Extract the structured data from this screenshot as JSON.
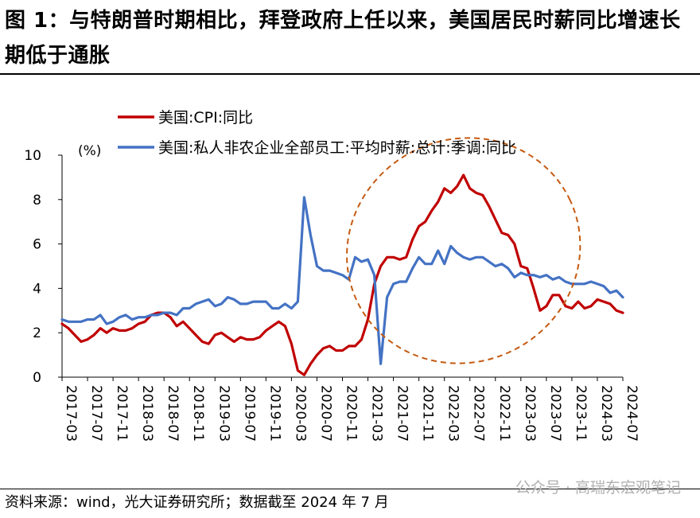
{
  "figure": {
    "title": "图 1：与特朗普时期相比，拜登政府上任以来，美国居民时薪同比增速长期低于通胀",
    "source": "资料来源：wind，光大证券研究所；数据截至 2024 年 7 月",
    "watermark": "公众号 · 高瑞东宏观笔记"
  },
  "colors": {
    "cpi": "#c00000",
    "wage": "#4472c4",
    "ellipse": "#c55a11"
  },
  "chart_data": {
    "type": "line",
    "ylabel": "(%)",
    "ylim": [
      0,
      10
    ],
    "yticks": [
      "0",
      "2",
      "4",
      "6",
      "8",
      "10"
    ],
    "xlim": [
      "2017-03",
      "2024-07"
    ],
    "xticks": [
      "2017-03",
      "2017-07",
      "2017-11",
      "2018-03",
      "2018-07",
      "2018-11",
      "2019-03",
      "2019-07",
      "2019-11",
      "2020-03",
      "2020-07",
      "2020-11",
      "2021-03",
      "2021-07",
      "2021-11",
      "2022-03",
      "2022-07",
      "2022-11",
      "2023-03",
      "2023-07",
      "2023-11",
      "2024-03",
      "2024-07"
    ],
    "legend_position": "top-left",
    "annotation": "dashed ellipse around 2021-03 to 2023-07 period",
    "series": [
      {
        "name": "美国:CPI:同比",
        "color": "#c00000",
        "x": [
          "2017-03",
          "2017-04",
          "2017-05",
          "2017-06",
          "2017-07",
          "2017-08",
          "2017-09",
          "2017-10",
          "2017-11",
          "2017-12",
          "2018-01",
          "2018-02",
          "2018-03",
          "2018-04",
          "2018-05",
          "2018-06",
          "2018-07",
          "2018-08",
          "2018-09",
          "2018-10",
          "2018-11",
          "2018-12",
          "2019-01",
          "2019-02",
          "2019-03",
          "2019-04",
          "2019-05",
          "2019-06",
          "2019-07",
          "2019-08",
          "2019-09",
          "2019-10",
          "2019-11",
          "2019-12",
          "2020-01",
          "2020-02",
          "2020-03",
          "2020-04",
          "2020-05",
          "2020-06",
          "2020-07",
          "2020-08",
          "2020-09",
          "2020-10",
          "2020-11",
          "2020-12",
          "2021-01",
          "2021-02",
          "2021-03",
          "2021-04",
          "2021-05",
          "2021-06",
          "2021-07",
          "2021-08",
          "2021-09",
          "2021-10",
          "2021-11",
          "2021-12",
          "2022-01",
          "2022-02",
          "2022-03",
          "2022-04",
          "2022-05",
          "2022-06",
          "2022-07",
          "2022-08",
          "2022-09",
          "2022-10",
          "2022-11",
          "2022-12",
          "2023-01",
          "2023-02",
          "2023-03",
          "2023-04",
          "2023-05",
          "2023-06",
          "2023-07",
          "2023-08",
          "2023-09",
          "2023-10",
          "2023-11",
          "2023-12",
          "2024-01",
          "2024-02",
          "2024-03",
          "2024-04",
          "2024-05",
          "2024-06",
          "2024-07"
        ],
        "values": [
          2.4,
          2.2,
          1.9,
          1.6,
          1.7,
          1.9,
          2.2,
          2.0,
          2.2,
          2.1,
          2.1,
          2.2,
          2.4,
          2.5,
          2.8,
          2.9,
          2.9,
          2.7,
          2.3,
          2.5,
          2.2,
          1.9,
          1.6,
          1.5,
          1.9,
          2.0,
          1.8,
          1.6,
          1.8,
          1.7,
          1.7,
          1.8,
          2.1,
          2.3,
          2.5,
          2.3,
          1.5,
          0.3,
          0.1,
          0.6,
          1.0,
          1.3,
          1.4,
          1.2,
          1.2,
          1.4,
          1.4,
          1.7,
          2.6,
          4.2,
          5.0,
          5.4,
          5.4,
          5.3,
          5.4,
          6.2,
          6.8,
          7.0,
          7.5,
          7.9,
          8.5,
          8.3,
          8.6,
          9.1,
          8.5,
          8.3,
          8.2,
          7.7,
          7.1,
          6.5,
          6.4,
          6.0,
          5.0,
          4.9,
          4.0,
          3.0,
          3.2,
          3.7,
          3.7,
          3.2,
          3.1,
          3.4,
          3.1,
          3.2,
          3.5,
          3.4,
          3.3,
          3.0,
          2.9
        ]
      },
      {
        "name": "美国:私人非农企业全部员工:平均时薪:总计:季调:同比",
        "color": "#4472c4",
        "x": [
          "2017-03",
          "2017-04",
          "2017-05",
          "2017-06",
          "2017-07",
          "2017-08",
          "2017-09",
          "2017-10",
          "2017-11",
          "2017-12",
          "2018-01",
          "2018-02",
          "2018-03",
          "2018-04",
          "2018-05",
          "2018-06",
          "2018-07",
          "2018-08",
          "2018-09",
          "2018-10",
          "2018-11",
          "2018-12",
          "2019-01",
          "2019-02",
          "2019-03",
          "2019-04",
          "2019-05",
          "2019-06",
          "2019-07",
          "2019-08",
          "2019-09",
          "2019-10",
          "2019-11",
          "2019-12",
          "2020-01",
          "2020-02",
          "2020-03",
          "2020-04",
          "2020-05",
          "2020-06",
          "2020-07",
          "2020-08",
          "2020-09",
          "2020-10",
          "2020-11",
          "2020-12",
          "2021-01",
          "2021-02",
          "2021-03",
          "2021-04",
          "2021-05",
          "2021-06",
          "2021-07",
          "2021-08",
          "2021-09",
          "2021-10",
          "2021-11",
          "2021-12",
          "2022-01",
          "2022-02",
          "2022-03",
          "2022-04",
          "2022-05",
          "2022-06",
          "2022-07",
          "2022-08",
          "2022-09",
          "2022-10",
          "2022-11",
          "2022-12",
          "2023-01",
          "2023-02",
          "2023-03",
          "2023-04",
          "2023-05",
          "2023-06",
          "2023-07",
          "2023-08",
          "2023-09",
          "2023-10",
          "2023-11",
          "2023-12",
          "2024-01",
          "2024-02",
          "2024-03",
          "2024-04",
          "2024-05",
          "2024-06",
          "2024-07"
        ],
        "values": [
          2.6,
          2.5,
          2.5,
          2.5,
          2.6,
          2.6,
          2.8,
          2.4,
          2.5,
          2.7,
          2.8,
          2.6,
          2.7,
          2.7,
          2.8,
          2.8,
          2.9,
          2.9,
          2.8,
          3.1,
          3.1,
          3.3,
          3.4,
          3.5,
          3.2,
          3.3,
          3.6,
          3.5,
          3.3,
          3.3,
          3.4,
          3.4,
          3.4,
          3.1,
          3.1,
          3.3,
          3.1,
          3.4,
          8.1,
          6.4,
          5.0,
          4.8,
          4.8,
          4.7,
          4.6,
          4.4,
          5.4,
          5.2,
          5.3,
          4.6,
          0.6,
          3.6,
          4.2,
          4.3,
          4.3,
          4.9,
          5.4,
          5.1,
          5.1,
          5.7,
          5.1,
          5.9,
          5.6,
          5.4,
          5.3,
          5.4,
          5.4,
          5.2,
          5.0,
          5.1,
          4.9,
          4.5,
          4.7,
          4.6,
          4.6,
          4.5,
          4.6,
          4.4,
          4.5,
          4.3,
          4.2,
          4.2,
          4.2,
          4.3,
          4.2,
          4.1,
          3.8,
          3.9,
          3.6
        ]
      }
    ]
  }
}
